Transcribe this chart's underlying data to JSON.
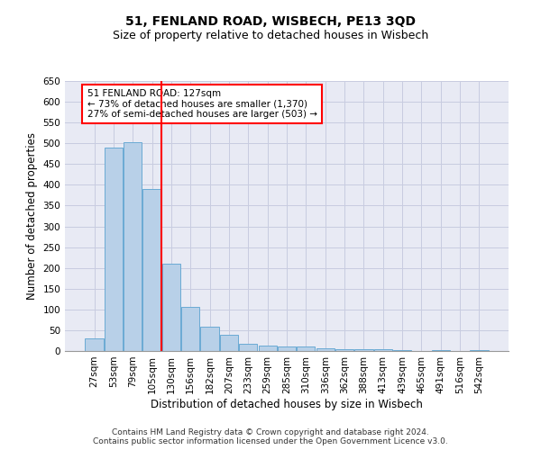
{
  "title1": "51, FENLAND ROAD, WISBECH, PE13 3QD",
  "title2": "Size of property relative to detached houses in Wisbech",
  "xlabel": "Distribution of detached houses by size in Wisbech",
  "ylabel": "Number of detached properties",
  "categories": [
    "27sqm",
    "53sqm",
    "79sqm",
    "105sqm",
    "130sqm",
    "156sqm",
    "182sqm",
    "207sqm",
    "233sqm",
    "259sqm",
    "285sqm",
    "310sqm",
    "336sqm",
    "362sqm",
    "388sqm",
    "413sqm",
    "439sqm",
    "465sqm",
    "491sqm",
    "516sqm",
    "542sqm"
  ],
  "values": [
    30,
    490,
    503,
    390,
    210,
    107,
    59,
    40,
    18,
    13,
    11,
    10,
    6,
    5,
    5,
    5,
    2,
    0,
    2,
    0,
    3
  ],
  "bar_color": "#b8d0e8",
  "bar_edgecolor": "#6aaad4",
  "annotation_line1": "51 FENLAND ROAD: 127sqm",
  "annotation_line2": "← 73% of detached houses are smaller (1,370)",
  "annotation_line3": "27% of semi-detached houses are larger (503) →",
  "marker_color": "red",
  "annotation_box_edgecolor": "red",
  "ylim": [
    0,
    650
  ],
  "yticks": [
    0,
    50,
    100,
    150,
    200,
    250,
    300,
    350,
    400,
    450,
    500,
    550,
    600,
    650
  ],
  "grid_color": "#c8cce0",
  "bg_color": "#e8eaf4",
  "footer": "Contains HM Land Registry data © Crown copyright and database right 2024.\nContains public sector information licensed under the Open Government Licence v3.0.",
  "title1_fontsize": 10,
  "title2_fontsize": 9,
  "xlabel_fontsize": 8.5,
  "ylabel_fontsize": 8.5,
  "tick_fontsize": 7.5,
  "footer_fontsize": 6.5,
  "annotation_fontsize": 7.5
}
